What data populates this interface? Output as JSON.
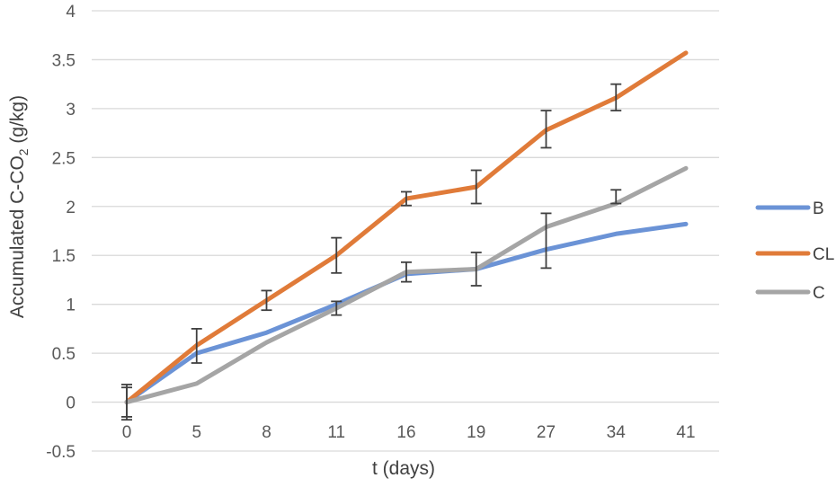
{
  "chart_data": {
    "type": "line",
    "title": "",
    "xlabel": "t (days)",
    "ylabel_main": "Accumulated C-CO",
    "ylabel_sub": "2",
    "ylabel_tail": " (g/kg)",
    "categories": [
      "0",
      "5",
      "8",
      "11",
      "16",
      "19",
      "27",
      "34",
      "41"
    ],
    "ylim": [
      -0.5,
      4
    ],
    "yticks": [
      "-0.5",
      "0",
      "0.5",
      "1",
      "1.5",
      "2",
      "2.5",
      "3",
      "3.5",
      "4"
    ],
    "grid": true,
    "legend_position": "right",
    "series": [
      {
        "name": "B",
        "color": "#6b93d6",
        "values": [
          0.0,
          0.5,
          0.71,
          1.0,
          1.31,
          1.36,
          1.56,
          1.72,
          1.82
        ],
        "err_low": [
          0.0,
          0.0,
          0.0,
          0.0,
          0.0,
          0.0,
          0.0,
          0.0,
          0.0
        ],
        "err_high": [
          0.0,
          0.0,
          0.0,
          0.0,
          0.0,
          0.0,
          0.0,
          0.0,
          0.0
        ]
      },
      {
        "name": "CL",
        "color": "#e07b39",
        "values": [
          0.0,
          0.58,
          1.04,
          1.5,
          2.08,
          2.2,
          2.78,
          3.11,
          3.57
        ],
        "err_low": [
          0.18,
          0.18,
          0.1,
          0.18,
          0.07,
          0.17,
          0.18,
          0.13,
          0.0
        ],
        "err_high": [
          0.18,
          0.17,
          0.1,
          0.18,
          0.07,
          0.17,
          0.2,
          0.14,
          0.0
        ]
      },
      {
        "name": "C",
        "color": "#a5a5a5",
        "values": [
          0.0,
          0.19,
          0.61,
          0.96,
          1.33,
          1.36,
          1.79,
          2.03,
          2.39
        ],
        "err_low": [
          0.15,
          0.0,
          0.0,
          0.07,
          0.1,
          0.17,
          0.42,
          0.0,
          0.0
        ],
        "err_high": [
          0.15,
          0.0,
          0.0,
          0.07,
          0.1,
          0.17,
          0.14,
          0.14,
          0.0
        ]
      }
    ]
  }
}
